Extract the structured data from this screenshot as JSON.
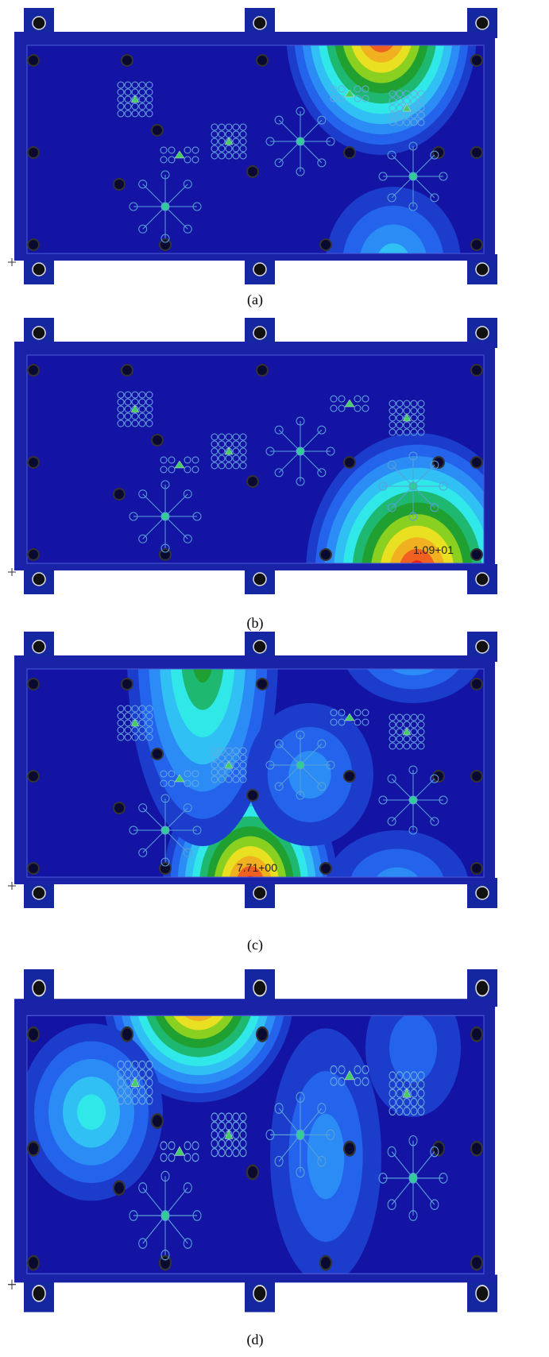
{
  "panels": [
    {
      "label": "(a)"
    },
    {
      "label": "(b)",
      "annotation": "1.09+01"
    },
    {
      "label": "(c)",
      "annotation": "7.71+00"
    },
    {
      "label": "(d)"
    }
  ]
}
